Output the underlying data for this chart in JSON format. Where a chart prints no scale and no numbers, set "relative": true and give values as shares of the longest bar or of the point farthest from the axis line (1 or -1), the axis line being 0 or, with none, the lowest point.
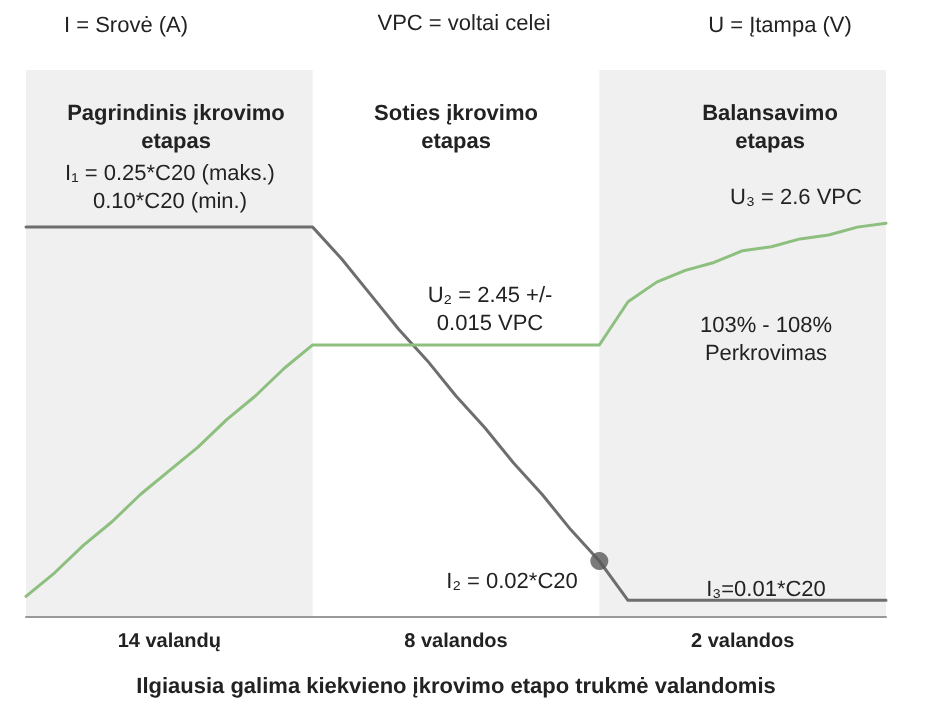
{
  "chart_data": {
    "type": "line",
    "relative": true,
    "xlabel": "Ilgiausia galima kiekvieno įkrovimo etapo trukmė valandomis",
    "categories": [
      null,
      null,
      null,
      null,
      null,
      "14 valandų",
      null,
      null,
      null,
      null,
      null,
      null,
      null,
      null,
      null,
      "8 valandos",
      null,
      null,
      null,
      null,
      null,
      null,
      null,
      null,
      null,
      "2 valandos",
      null,
      null,
      null,
      null,
      null
    ],
    "line_style": "solid",
    "series": [
      {
        "color": "#6e6e6e",
        "values": [
          0.99,
          0.99,
          0.99,
          0.99,
          0.99,
          0.99,
          0.99,
          0.99,
          0.99,
          0.99,
          0.99,
          0.91,
          0.82,
          0.73,
          0.65,
          0.56,
          0.48,
          0.39,
          0.31,
          0.22,
          0.14,
          0.04,
          0.04,
          0.04,
          0.04,
          0.04,
          0.04,
          0.04,
          0.04,
          0.04,
          0.04
        ]
      },
      {
        "color": "#8dbf7f",
        "values": [
          0.05,
          0.11,
          0.18,
          0.24,
          0.31,
          0.37,
          0.43,
          0.5,
          0.56,
          0.63,
          0.69,
          0.69,
          0.69,
          0.69,
          0.69,
          0.69,
          0.69,
          0.69,
          0.69,
          0.69,
          0.69,
          0.8,
          0.85,
          0.88,
          0.9,
          0.93,
          0.94,
          0.96,
          0.97,
          0.99,
          1
        ]
      },
      {
        "type": "scatter",
        "color": "#5a5a5a",
        "values": [
          null,
          null,
          null,
          null,
          null,
          null,
          null,
          null,
          null,
          null,
          null,
          null,
          null,
          null,
          null,
          null,
          null,
          null,
          null,
          null,
          0.14,
          null,
          null,
          null,
          null,
          null,
          null,
          null,
          null,
          null,
          null
        ]
      }
    ],
    "annotations": [
      "I = Srovė (A)",
      "VPC = voltai celei",
      "U = Įtampa (V)",
      "I₁ = 0.25*C20 (maks.)\n0.10*C20 (min.)",
      "U₂ = 2.45 +/-\n0.015 VPC",
      "U₃ = 2.6 VPC",
      "103% - 108%\nPerkrovimas",
      "I₂ = 0.02*C20",
      "I₃=0.01*C20",
      "Pagrindinis įkrovimo\netapas",
      "Soties įkrovimo\netapas",
      "Balansavimo\netapas"
    ]
  }
}
